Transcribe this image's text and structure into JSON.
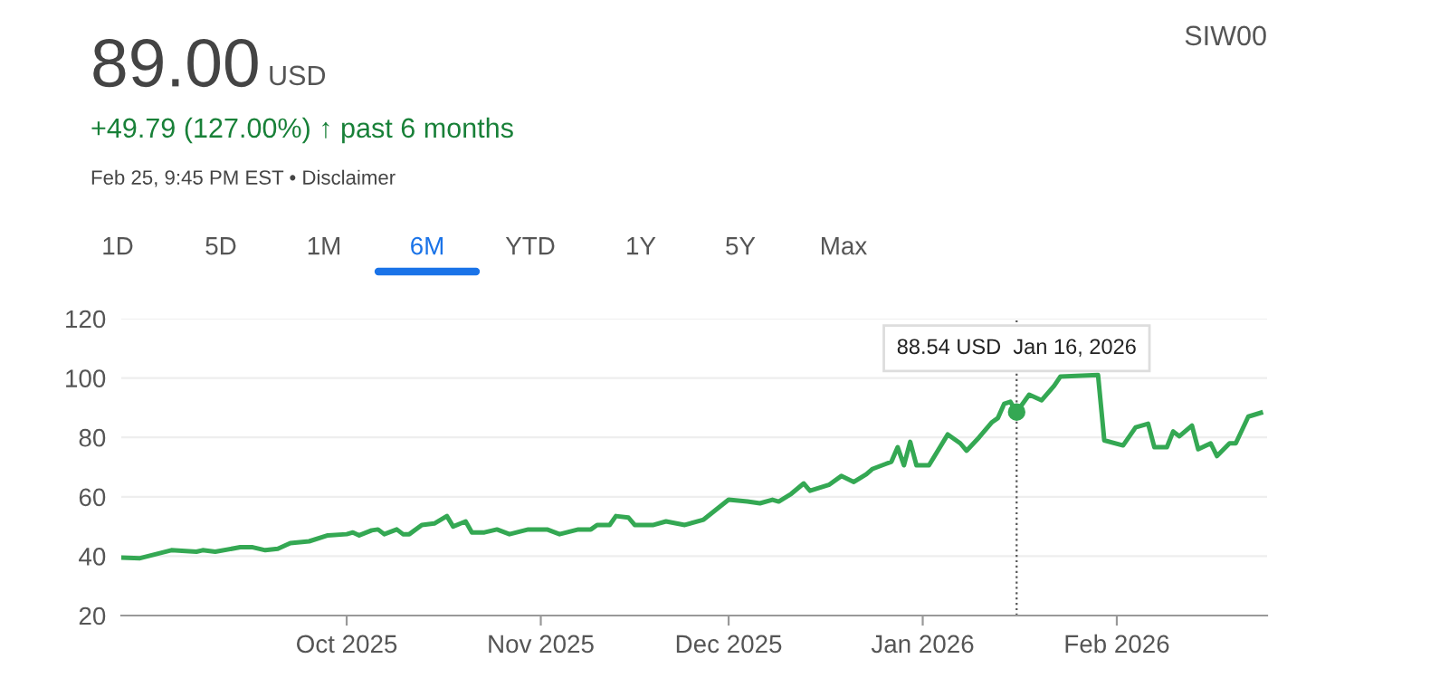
{
  "chart_data": {
    "type": "line",
    "title": "89.00",
    "subtitle": "+49.79 (127.00%) ↑ past 6 months",
    "annotations": [
      "USD",
      "Feb 25, 9:45 PM EST • Disclaimer",
      "SIW00",
      "1D",
      "5D",
      "1M",
      "6M",
      "YTD",
      "1Y",
      "5Y",
      "Max",
      {
        "text": "88.54 USD  Jan 16, 2026",
        "x": "2026-01-16",
        "y": 88.54
      }
    ],
    "x": [
      "2025-08-26",
      "2025-08-29",
      "2025-09-03",
      "2025-09-07",
      "2025-09-08",
      "2025-09-10",
      "2025-09-14",
      "2025-09-16",
      "2025-09-18",
      "2025-09-20",
      "2025-09-22",
      "2025-09-25",
      "2025-09-28",
      "2025-10-01",
      "2025-10-02",
      "2025-10-03",
      "2025-10-05",
      "2025-10-06",
      "2025-10-07",
      "2025-10-09",
      "2025-10-10",
      "2025-10-11",
      "2025-10-13",
      "2025-10-15",
      "2025-10-17",
      "2025-10-18",
      "2025-10-20",
      "2025-10-21",
      "2025-10-23",
      "2025-10-25",
      "2025-10-27",
      "2025-10-30",
      "2025-11-02",
      "2025-11-04",
      "2025-11-07",
      "2025-11-09",
      "2025-11-10",
      "2025-11-12",
      "2025-11-13",
      "2025-11-15",
      "2025-11-16",
      "2025-11-19",
      "2025-11-21",
      "2025-11-24",
      "2025-11-27",
      "2025-12-01",
      "2025-12-04",
      "2025-12-06",
      "2025-12-08",
      "2025-12-09",
      "2025-12-11",
      "2025-12-13",
      "2025-12-14",
      "2025-12-17",
      "2025-12-19",
      "2025-12-21",
      "2025-12-23",
      "2025-12-24",
      "2025-12-26",
      "2025-12-27",
      "2025-12-28",
      "2025-12-29",
      "2025-12-30",
      "2025-12-31",
      "2026-01-02",
      "2026-01-05",
      "2026-01-07",
      "2026-01-08",
      "2026-01-10",
      "2026-01-12",
      "2026-01-13",
      "2026-01-14",
      "2026-01-15",
      "2026-01-16",
      "2026-01-18",
      "2026-01-20",
      "2026-01-22",
      "2026-01-23",
      "2026-01-29",
      "2026-01-30",
      "2026-02-02",
      "2026-02-04",
      "2026-02-06",
      "2026-02-07",
      "2026-02-09",
      "2026-02-10",
      "2026-02-11",
      "2026-02-13",
      "2026-02-14",
      "2026-02-16",
      "2026-02-17",
      "2026-02-19",
      "2026-02-20",
      "2026-02-22",
      "2026-02-24"
    ],
    "series": [
      {
        "color": "#34a853",
        "values": [
          39.5,
          39.3,
          42,
          41.5,
          42,
          41.5,
          43,
          43,
          42,
          42.5,
          44.4,
          45,
          47,
          47.4,
          48,
          47,
          48.7,
          49,
          47.4,
          49,
          47.4,
          47.4,
          50.5,
          51,
          53.5,
          50,
          51.7,
          48,
          48,
          49,
          47.4,
          49,
          49,
          47.4,
          49,
          49,
          50.5,
          50.5,
          53.5,
          53,
          50.5,
          50.5,
          51.7,
          50.5,
          52.3,
          59,
          58.4,
          57.8,
          59,
          58.4,
          61,
          64.5,
          62,
          64,
          67,
          65,
          67.6,
          69.4,
          71,
          71.8,
          76.7,
          70.6,
          78.5,
          70.6,
          70.6,
          81,
          78,
          75.5,
          80,
          85,
          86.5,
          91.3,
          92,
          88.54,
          94.4,
          92.5,
          97.4,
          100.5,
          101,
          79,
          77.3,
          83.4,
          84.6,
          76.7,
          76.7,
          82,
          80.4,
          84,
          76,
          78,
          73.7,
          78,
          78,
          87,
          88.3
        ]
      }
    ],
    "xlim": [
      "2025-08-26",
      "2026-02-25"
    ],
    "xticks": [
      {
        "value": "2025-10-01",
        "label": "Oct 2025"
      },
      {
        "value": "2025-11-01",
        "label": "Nov 2025"
      },
      {
        "value": "2025-12-01",
        "label": "Dec 2025"
      },
      {
        "value": "2026-01-01",
        "label": "Jan 2026"
      },
      {
        "value": "2026-02-01",
        "label": "Feb 2026"
      }
    ],
    "ylim": [
      20,
      120
    ],
    "yticks": [
      20,
      40,
      60,
      80,
      100,
      120
    ],
    "ref_lines": [
      {
        "axis": "x",
        "value": "2026-01-16",
        "color": "#555555",
        "line_style": "dotted"
      }
    ],
    "grid": "y",
    "marker": "none",
    "line_style": "solid"
  }
}
